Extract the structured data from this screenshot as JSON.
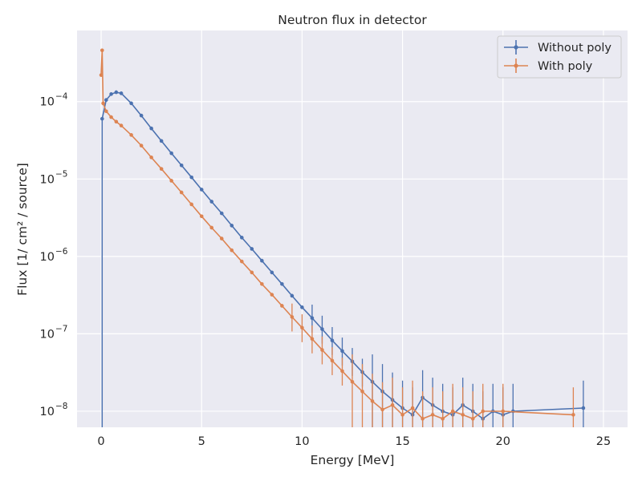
{
  "chart_data": {
    "type": "line",
    "title": "Neutron flux in detector",
    "xlabel": "Energy [MeV]",
    "ylabel": "Flux [1/ cm² / source]",
    "xscale": "linear",
    "yscale": "log",
    "xlim": [
      -1.2,
      26.2
    ],
    "ylim": [
      6.2e-09,
      0.00083
    ],
    "x_ticks": [
      0,
      5,
      10,
      15,
      20,
      25
    ],
    "x_tick_labels": [
      "0",
      "5",
      "10",
      "15",
      "20",
      "25"
    ],
    "y_ticks": [
      1e-08,
      1e-07,
      1e-06,
      1e-05,
      0.0001
    ],
    "y_tick_labels": [
      {
        "base": "10",
        "exp": "−8"
      },
      {
        "base": "10",
        "exp": "−7"
      },
      {
        "base": "10",
        "exp": "−6"
      },
      {
        "base": "10",
        "exp": "−5"
      },
      {
        "base": "10",
        "exp": "−4"
      }
    ],
    "grid": true,
    "legend_position": "top-right",
    "error_bars": true,
    "series": [
      {
        "name": "Without poly",
        "color": "#4c72b0",
        "x": [
          0.05,
          0.25,
          0.5,
          0.75,
          1.0,
          1.5,
          2.0,
          2.5,
          3.0,
          3.5,
          4.0,
          4.5,
          5.0,
          5.5,
          6.0,
          6.5,
          7.0,
          7.5,
          8.0,
          8.5,
          9.0,
          9.5,
          10.0,
          10.5,
          11.0,
          11.5,
          12.0,
          12.5,
          13.0,
          13.5,
          14.0,
          14.5,
          15.0,
          15.5,
          16.0,
          16.5,
          17.0,
          17.5,
          18.0,
          18.5,
          19.0,
          19.5,
          20.0,
          20.5,
          24.0
        ],
        "y": [
          6e-05,
          0.000105,
          0.000125,
          0.000132,
          0.000128,
          9.5e-05,
          6.6e-05,
          4.5e-05,
          3.1e-05,
          2.15e-05,
          1.5e-05,
          1.05e-05,
          7.3e-06,
          5.1e-06,
          3.6e-06,
          2.5e-06,
          1.75e-06,
          1.25e-06,
          8.8e-07,
          6.2e-07,
          4.4e-07,
          3.1e-07,
          2.2e-07,
          1.6e-07,
          1.15e-07,
          8.2e-08,
          6e-08,
          4.4e-08,
          3.2e-08,
          2.4e-08,
          1.8e-08,
          1.4e-08,
          1.1e-08,
          9e-09,
          1.5e-08,
          1.2e-08,
          1e-08,
          9e-09,
          1.2e-08,
          1e-08,
          8e-09,
          1e-08,
          9e-09,
          1e-08,
          1.1e-08
        ]
      },
      {
        "name": "With poly",
        "color": "#dd8452",
        "x": [
          0.0,
          0.05,
          0.1,
          0.25,
          0.5,
          0.75,
          1.0,
          1.5,
          2.0,
          2.5,
          3.0,
          3.5,
          4.0,
          4.5,
          5.0,
          5.5,
          6.0,
          6.5,
          7.0,
          7.5,
          8.0,
          8.5,
          9.0,
          9.5,
          10.0,
          10.5,
          11.0,
          11.5,
          12.0,
          12.5,
          13.0,
          13.5,
          14.0,
          14.5,
          15.0,
          15.5,
          16.0,
          16.5,
          17.0,
          17.5,
          18.0,
          18.5,
          19.0,
          20.0,
          23.5
        ],
        "y": [
          0.00022,
          0.00046,
          9.5e-05,
          7.5e-05,
          6.3e-05,
          5.5e-05,
          4.9e-05,
          3.7e-05,
          2.7e-05,
          1.9e-05,
          1.35e-05,
          9.5e-06,
          6.7e-06,
          4.7e-06,
          3.3e-06,
          2.35e-06,
          1.7e-06,
          1.2e-06,
          8.6e-07,
          6.2e-07,
          4.4e-07,
          3.2e-07,
          2.3e-07,
          1.65e-07,
          1.2e-07,
          8.6e-08,
          6.2e-08,
          4.5e-08,
          3.3e-08,
          2.4e-08,
          1.8e-08,
          1.35e-08,
          1.05e-08,
          1.2e-08,
          9e-09,
          1.1e-08,
          8e-09,
          9e-09,
          8e-09,
          1e-08,
          9e-09,
          8e-09,
          1e-08,
          1e-08,
          9e-09
        ]
      }
    ]
  }
}
